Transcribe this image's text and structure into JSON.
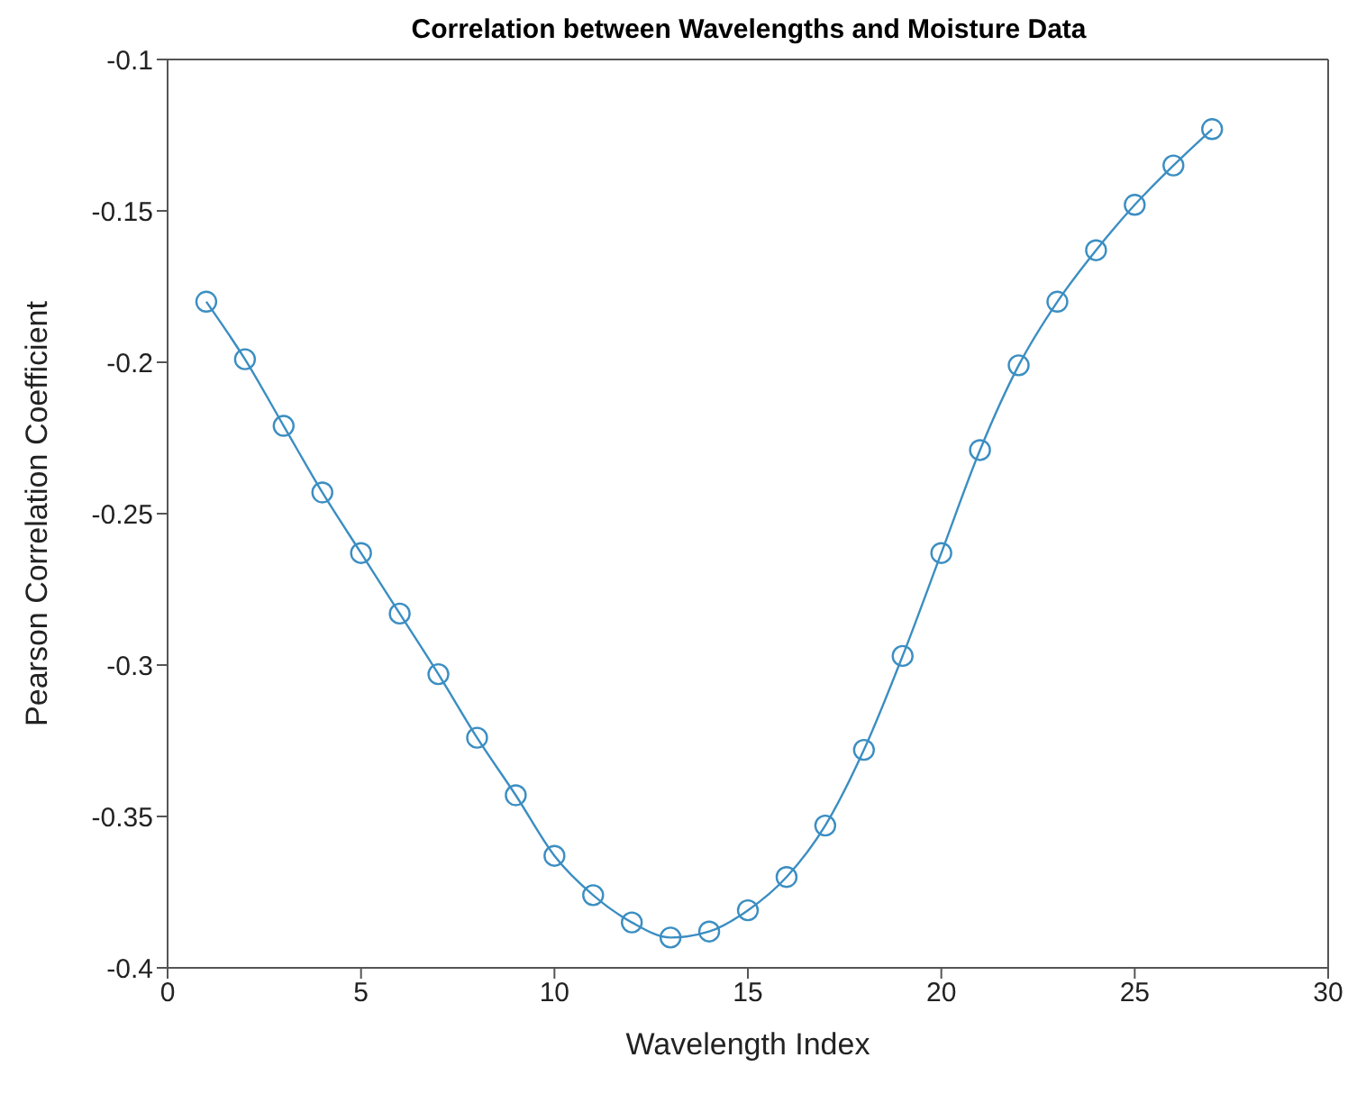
{
  "chart_data": {
    "type": "line",
    "title": "Correlation between Wavelengths and Moisture Data",
    "xlabel": "Wavelength Index",
    "ylabel": "Pearson Correlation Coefficient",
    "x": [
      1,
      2,
      3,
      4,
      5,
      6,
      7,
      8,
      9,
      10,
      11,
      12,
      13,
      14,
      15,
      16,
      17,
      18,
      19,
      20,
      21,
      22,
      23,
      24,
      25,
      26,
      27
    ],
    "series": [
      {
        "color": "#3b8ec2",
        "values": [
          -0.18,
          -0.199,
          -0.221,
          -0.243,
          -0.263,
          -0.283,
          -0.303,
          -0.324,
          -0.343,
          -0.363,
          -0.376,
          -0.385,
          -0.39,
          -0.388,
          -0.381,
          -0.37,
          -0.353,
          -0.328,
          -0.297,
          -0.263,
          -0.229,
          -0.201,
          -0.18,
          -0.163,
          -0.148,
          -0.135,
          -0.123
        ]
      }
    ],
    "xlim": [
      0,
      30
    ],
    "xticks": [
      0,
      5,
      10,
      15,
      20,
      25,
      30
    ],
    "ylim": [
      -0.4,
      -0.1
    ],
    "yticks": [
      -0.4,
      -0.35,
      -0.3,
      -0.25,
      -0.2,
      -0.15,
      -0.1
    ],
    "marker": "circle",
    "line_style": "solid",
    "grid": false,
    "legend": false
  }
}
